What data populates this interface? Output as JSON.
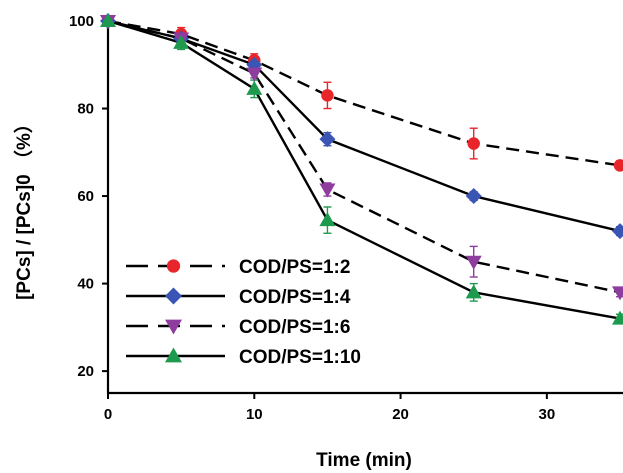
{
  "chart_data": {
    "type": "line",
    "title": "",
    "xlabel": "Time (min)",
    "ylabel": "[PCs] / [PCs]0  （%）",
    "xlim": [
      0,
      35
    ],
    "ylim": [
      15,
      100
    ],
    "xticks": [
      0,
      10,
      20,
      30
    ],
    "yticks": [
      20,
      40,
      60,
      80,
      100
    ],
    "x": [
      0,
      5,
      10,
      15,
      25,
      35
    ],
    "legend_position": "bottom-left",
    "grid": false,
    "series": [
      {
        "name": "COD/PS=1:2",
        "values": [
          100,
          97,
          91,
          83,
          72,
          67
        ],
        "errors": [
          0,
          1.5,
          1.5,
          3,
          3.5,
          1
        ],
        "color": "#e8252b",
        "marker": "circle",
        "line": "dashed"
      },
      {
        "name": "COD/PS=1:4",
        "values": [
          100,
          96,
          90,
          73,
          60,
          52
        ],
        "errors": [
          0,
          1,
          1,
          1.5,
          1,
          1
        ],
        "color": "#3a55b4",
        "marker": "diamond",
        "line": "solid"
      },
      {
        "name": "COD/PS=1:6",
        "values": [
          100,
          96,
          88,
          61.5,
          45,
          38
        ],
        "errors": [
          0,
          1,
          1,
          1.5,
          3.5,
          1
        ],
        "color": "#8e3c9e",
        "marker": "triangle-down",
        "line": "dashed"
      },
      {
        "name": "COD/PS=1:10",
        "values": [
          100,
          95,
          84.5,
          54.5,
          38,
          32
        ],
        "errors": [
          0,
          1.5,
          2,
          3,
          2,
          1
        ],
        "color": "#1e9a4e",
        "marker": "triangle-up",
        "line": "solid"
      }
    ]
  }
}
